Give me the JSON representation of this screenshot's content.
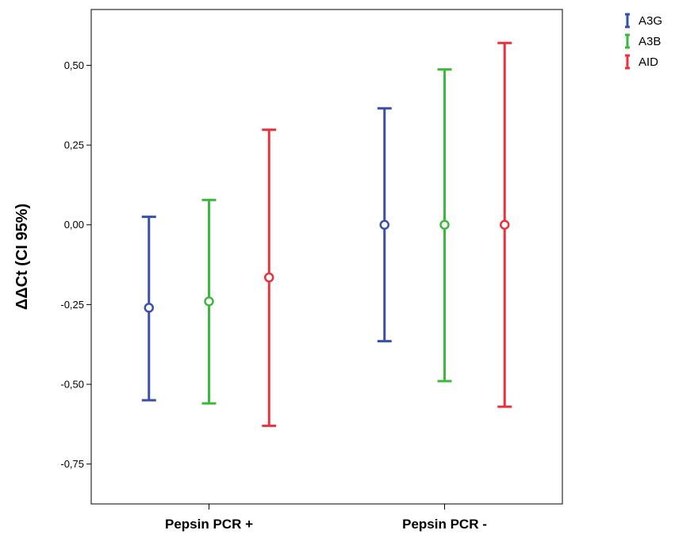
{
  "chart_data": {
    "type": "errorbar",
    "xlabel": "",
    "ylabel": "ΔΔCt (CI 95%)",
    "ylim": [
      -0.875,
      0.675
    ],
    "y_ticks": [
      0.5,
      0.25,
      0.0,
      -0.25,
      -0.5,
      -0.75
    ],
    "y_tick_labels": [
      "0,50",
      "0,25",
      "0,00",
      "-0,25",
      "-0,50",
      "-0,75"
    ],
    "categories": [
      "Pepsin PCR +",
      "Pepsin PCR -"
    ],
    "legend_position": "top-right",
    "grid": false,
    "series": [
      {
        "name": "A3G",
        "color": "#3a4fa8",
        "points": [
          {
            "category": "Pepsin PCR +",
            "mean": -0.26,
            "lower": -0.55,
            "upper": 0.025
          },
          {
            "category": "Pepsin PCR -",
            "mean": 0.0,
            "lower": -0.365,
            "upper": 0.365
          }
        ]
      },
      {
        "name": "A3B",
        "color": "#3cb93c",
        "points": [
          {
            "category": "Pepsin PCR +",
            "mean": -0.24,
            "lower": -0.56,
            "upper": 0.078
          },
          {
            "category": "Pepsin PCR -",
            "mean": 0.0,
            "lower": -0.49,
            "upper": 0.487
          }
        ]
      },
      {
        "name": "AID",
        "color": "#e8323c",
        "points": [
          {
            "category": "Pepsin PCR +",
            "mean": -0.165,
            "lower": -0.63,
            "upper": 0.298
          },
          {
            "category": "Pepsin PCR -",
            "mean": 0.0,
            "lower": -0.57,
            "upper": 0.57
          }
        ]
      }
    ]
  }
}
